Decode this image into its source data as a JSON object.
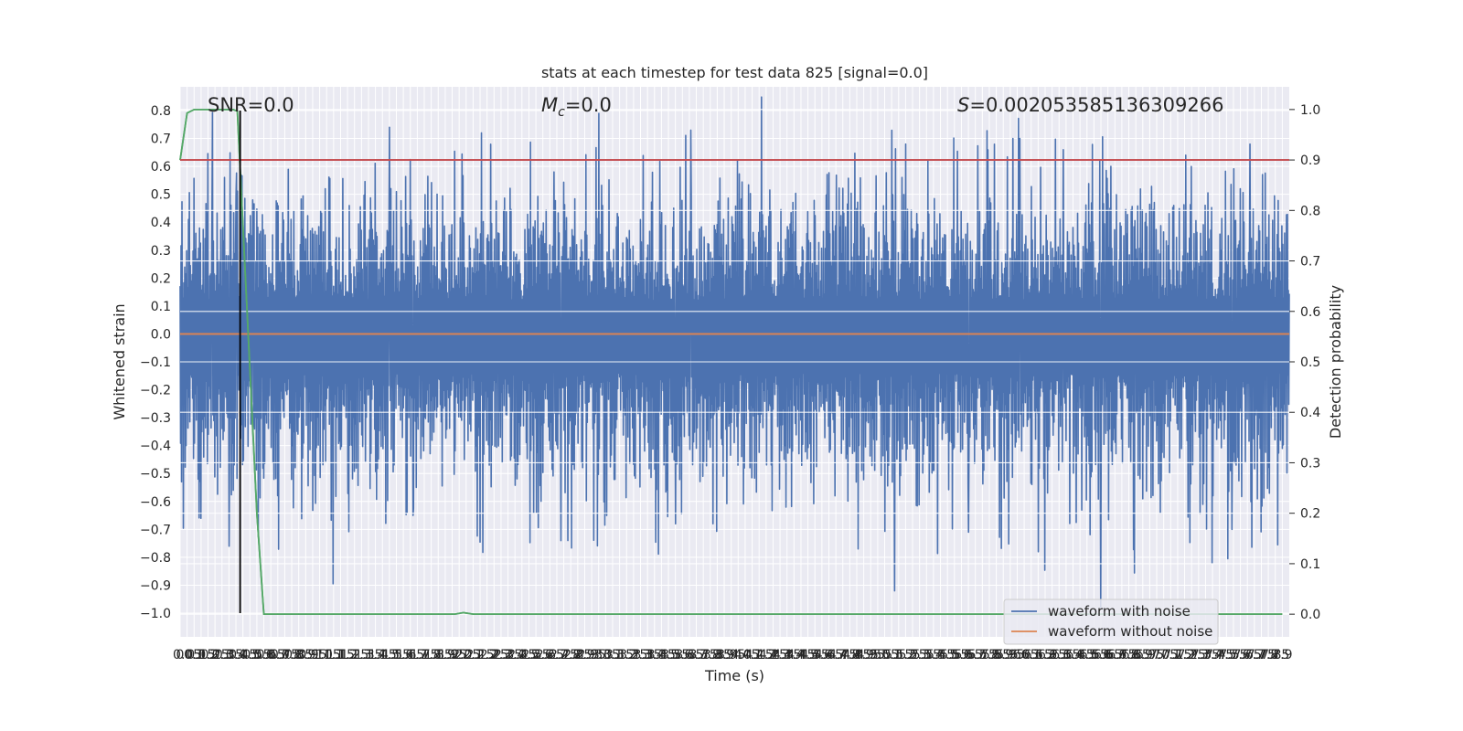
{
  "chart_data": {
    "type": "line",
    "title": "stats at each timestep for test data 825 [signal=0.0]",
    "xlabel": "Time (s)",
    "ylabel": "Whitened strain",
    "y2label": "Detection probability",
    "xlim": [
      0.0,
      7.95
    ],
    "ylim": [
      -1.085,
      0.885
    ],
    "y2lim": [
      -0.045,
      1.045
    ],
    "xticks": [
      0.0,
      0.05,
      0.1,
      0.15,
      0.2,
      0.25,
      0.3,
      0.35,
      0.4,
      0.45,
      0.5,
      0.55,
      0.6,
      0.65,
      0.7,
      0.75,
      0.8,
      0.85,
      0.9,
      0.95,
      1.0,
      1.05,
      1.1,
      1.15,
      1.2,
      1.25,
      1.3,
      1.35,
      1.4,
      1.45,
      1.5,
      1.55,
      1.6,
      1.65,
      1.7,
      1.75,
      1.8,
      1.85,
      1.9,
      1.95,
      2.0,
      2.05,
      2.1,
      2.15,
      2.2,
      2.25,
      2.3,
      2.35,
      2.4,
      2.45,
      2.5,
      2.55,
      2.6,
      2.65,
      2.7,
      2.75,
      2.8,
      2.85,
      2.9,
      2.95,
      3.0,
      3.05,
      3.1,
      3.15,
      3.2,
      3.25,
      3.3,
      3.35,
      3.4,
      3.45,
      3.5,
      3.55,
      3.6,
      3.65,
      3.7,
      3.75,
      3.8,
      3.85,
      3.9,
      3.95,
      4.0,
      4.05,
      4.1,
      4.15,
      4.2,
      4.25,
      4.3,
      4.35,
      4.4,
      4.45,
      4.5,
      4.55,
      4.6,
      4.65,
      4.7,
      4.75,
      4.8,
      4.85,
      4.9,
      4.95,
      5.0,
      5.05,
      5.1,
      5.15,
      5.2,
      5.25,
      5.3,
      5.35,
      5.4,
      5.45,
      5.5,
      5.55,
      5.6,
      5.65,
      5.7,
      5.75,
      5.8,
      5.85,
      5.9,
      5.95,
      6.0,
      6.05,
      6.1,
      6.15,
      6.2,
      6.25,
      6.3,
      6.35,
      6.4,
      6.45,
      6.5,
      6.55,
      6.6,
      6.65,
      6.7,
      6.75,
      6.8,
      6.85,
      6.9,
      6.95,
      7.0,
      7.05,
      7.1,
      7.15,
      7.2,
      7.25,
      7.3,
      7.35,
      7.4,
      7.45,
      7.5,
      7.55,
      7.6,
      7.65,
      7.7,
      7.75,
      7.8,
      7.85,
      7.9
    ],
    "yticks": [
      0.8,
      0.7,
      0.6,
      0.5,
      0.4,
      0.3,
      0.2,
      0.1,
      0.0,
      -0.1,
      -0.2,
      -0.3,
      -0.4,
      -0.5,
      -0.6,
      -0.7,
      -0.8,
      -0.9,
      -1.0
    ],
    "ytick_labels": [
      "0.8",
      "0.7",
      "0.6",
      "0.5",
      "0.4",
      "0.3",
      "0.2",
      "0.1",
      "0.0",
      "−0.1",
      "−0.2",
      "−0.3",
      "−0.4",
      "−0.5",
      "−0.6",
      "−0.7",
      "−0.8",
      "−0.9",
      "−1.0"
    ],
    "y2ticks": [
      1.0,
      0.9,
      0.8,
      0.7,
      0.6,
      0.5,
      0.4,
      0.3,
      0.2,
      0.1,
      0.0
    ],
    "y2tick_labels": [
      "1.0",
      "0.9",
      "0.8",
      "0.7",
      "0.6",
      "0.5",
      "0.4",
      "0.3",
      "0.2",
      "0.1",
      "0.0"
    ],
    "grid": true,
    "background": "#eaeaf2",
    "annotations": {
      "snr": "SNR=0.0",
      "mc_symbol": "M",
      "mc_sub": "c",
      "mc_value": "=0.0",
      "s_symbol": "S",
      "s_value": "=0.002053585136309266"
    },
    "series": [
      {
        "name": "waveform with noise",
        "axis": "left",
        "color": "#4c72b0",
        "style": "noise",
        "typical_max": 0.3,
        "typical_min": -0.35,
        "highlight_peaks": [
          [
            0.23,
            0.46
          ],
          [
            0.4,
            0.5
          ],
          [
            0.52,
            0.48
          ],
          [
            1.04,
            0.52
          ],
          [
            1.5,
            0.74
          ],
          [
            2.16,
            0.72
          ],
          [
            2.68,
            0.58
          ],
          [
            3.0,
            0.79
          ],
          [
            3.66,
            0.73
          ],
          [
            5.2,
            0.68
          ],
          [
            5.97,
            0.7
          ],
          [
            6.02,
            0.7
          ],
          [
            6.33,
            0.66
          ],
          [
            6.67,
            0.6
          ],
          [
            7.67,
            0.68
          ]
        ],
        "highlight_troughs": [
          [
            0.35,
            -0.76
          ],
          [
            1.67,
            -0.65
          ],
          [
            2.73,
            -0.74
          ],
          [
            3.55,
            -0.68
          ],
          [
            4.86,
            -0.77
          ],
          [
            5.12,
            -0.92
          ],
          [
            5.65,
            -0.71
          ],
          [
            6.15,
            -0.78
          ],
          [
            6.6,
            -0.98
          ],
          [
            7.54,
            -0.7
          ]
        ]
      },
      {
        "name": "waveform without noise",
        "axis": "left",
        "color": "#dd8452",
        "x": [
          0.0,
          7.95
        ],
        "y": [
          0.0,
          0.0
        ]
      },
      {
        "axis": "right",
        "color": "#55a868",
        "x": [
          0.0,
          0.05,
          0.1,
          0.15,
          0.2,
          0.3,
          0.38,
          0.41,
          0.48,
          0.55,
          0.6,
          1.97,
          2.03,
          2.1,
          7.9
        ],
        "y": [
          0.9,
          0.993,
          1.0,
          1.0,
          1.0,
          1.0,
          1.0,
          0.997,
          0.6,
          0.2,
          0.0,
          0.0,
          0.003,
          0.0,
          0.0
        ]
      },
      {
        "axis": "right",
        "color": "#c44e52",
        "x": [
          0.0,
          7.95
        ],
        "y": [
          0.9,
          0.9
        ]
      }
    ],
    "marker_line": {
      "color": "#000000",
      "x": 0.43,
      "y_from": -1.0,
      "y_to": 0.8
    },
    "legend": {
      "placement": "lower-right",
      "entries": [
        {
          "label": "waveform with noise",
          "color": "#4c72b0"
        },
        {
          "label": "waveform without noise",
          "color": "#dd8452"
        }
      ]
    }
  }
}
